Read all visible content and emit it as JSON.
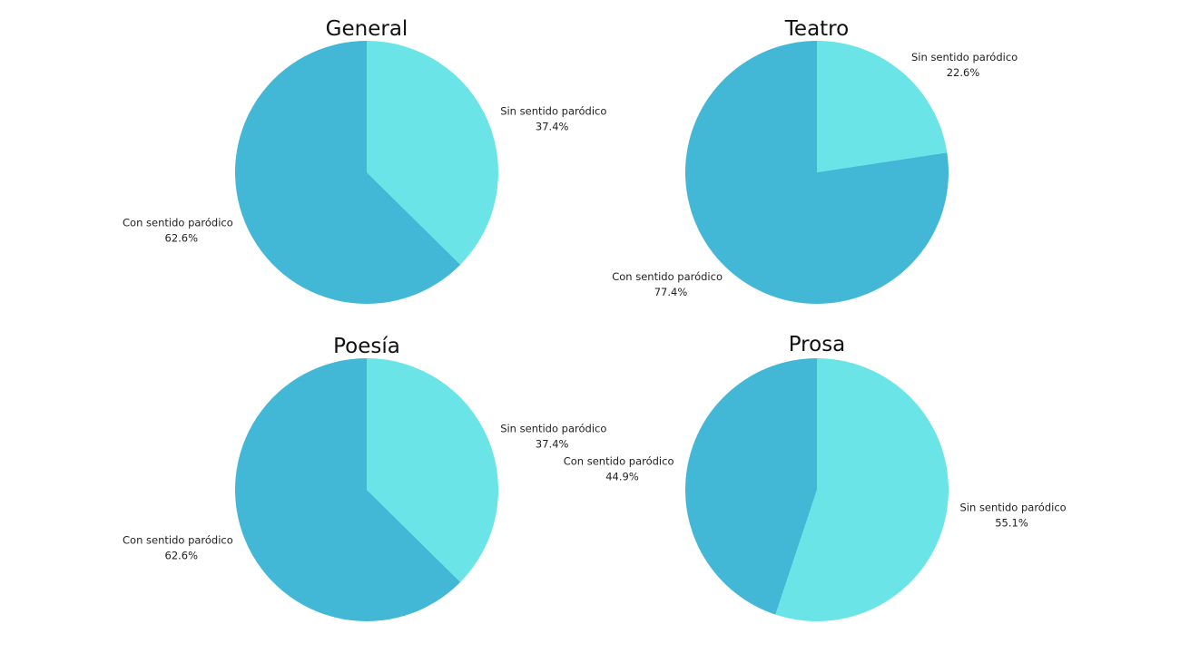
{
  "colors": {
    "con": "#42b8d6",
    "sin": "#6be4e8"
  },
  "chart_data": [
    {
      "type": "pie",
      "title": "General",
      "slices": [
        {
          "label": "Sin sentido paródico",
          "value": 37.4,
          "display": "37.4%",
          "color": "#6be4e8"
        },
        {
          "label": "Con sentido paródico",
          "value": 62.6,
          "display": "62.6%",
          "color": "#42b8d6"
        }
      ]
    },
    {
      "type": "pie",
      "title": "Teatro",
      "slices": [
        {
          "label": "Sin sentido paródico",
          "value": 22.6,
          "display": "22.6%",
          "color": "#6be4e8"
        },
        {
          "label": "Con sentido paródico",
          "value": 77.4,
          "display": "77.4%",
          "color": "#42b8d6"
        }
      ]
    },
    {
      "type": "pie",
      "title": "Poesía",
      "slices": [
        {
          "label": "Sin sentido paródico",
          "value": 37.4,
          "display": "37.4%",
          "color": "#6be4e8"
        },
        {
          "label": "Con sentido paródico",
          "value": 62.6,
          "display": "62.6%",
          "color": "#42b8d6"
        }
      ]
    },
    {
      "type": "pie",
      "title": "Prosa",
      "slices": [
        {
          "label": "Sin sentido paródico",
          "value": 55.1,
          "display": "55.1%",
          "color": "#6be4e8"
        },
        {
          "label": "Con sentido paródico",
          "value": 44.9,
          "display": "44.9%",
          "color": "#42b8d6"
        }
      ]
    }
  ]
}
